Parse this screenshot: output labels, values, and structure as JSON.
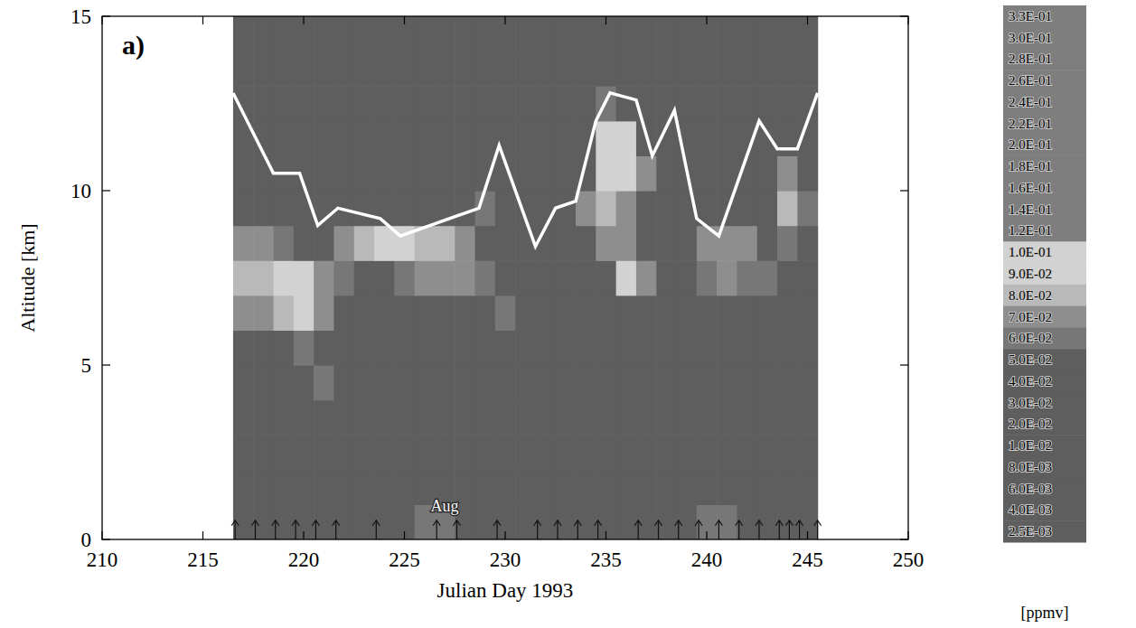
{
  "chart_data": {
    "type": "contour",
    "panel_label": "a)",
    "xlabel": "Julian Day 1993",
    "ylabel": "Altitude [km]",
    "xlim": [
      210,
      250
    ],
    "xticks": [
      210,
      215,
      220,
      225,
      230,
      235,
      240,
      245,
      250
    ],
    "ylim": [
      0,
      15
    ],
    "yticks": [
      0,
      5,
      10,
      15
    ],
    "grid": false,
    "annotations": [
      {
        "text": "Aug",
        "x": 227,
        "y": 0.8
      }
    ],
    "x": [
      217,
      218,
      219,
      220,
      221,
      222,
      223,
      224,
      225,
      226,
      227,
      228,
      229,
      230,
      231,
      232,
      233,
      234,
      235,
      236,
      237,
      238,
      239,
      240,
      241,
      242,
      243,
      244,
      245
    ],
    "y": [
      0.5,
      1.5,
      2.5,
      3.5,
      4.5,
      5.5,
      6.5,
      7.5,
      8.5,
      9.5,
      10.5,
      11.5,
      12.5,
      13.5,
      14.5
    ],
    "cells": [
      [
        0.04,
        0.04,
        0.04,
        0.04,
        0.04,
        0.04,
        0.04,
        0.04,
        0.04,
        0.06,
        0.06,
        0.04,
        0.04,
        0.04,
        0.04,
        0.04,
        0.04,
        0.04,
        0.04,
        0.04,
        0.04,
        0.04,
        0.04,
        0.06,
        0.06,
        0.04,
        0.04,
        0.04,
        0.04
      ],
      [
        0.04,
        0.04,
        0.04,
        0.04,
        0.04,
        0.04,
        0.04,
        0.04,
        0.04,
        0.04,
        0.04,
        0.04,
        0.04,
        0.04,
        0.04,
        0.04,
        0.04,
        0.04,
        0.04,
        0.04,
        0.04,
        0.04,
        0.04,
        0.04,
        0.05,
        0.04,
        0.04,
        0.04,
        0.04
      ],
      [
        0.05,
        0.05,
        0.05,
        0.05,
        0.05,
        0.05,
        0.05,
        0.05,
        0.05,
        0.05,
        0.05,
        0.05,
        0.05,
        0.05,
        0.05,
        0.05,
        0.05,
        0.05,
        0.05,
        0.05,
        0.05,
        0.05,
        0.05,
        0.05,
        0.05,
        0.05,
        0.05,
        0.05,
        0.05
      ],
      [
        0.05,
        0.05,
        0.05,
        0.05,
        0.05,
        0.05,
        0.05,
        0.05,
        0.05,
        0.05,
        0.05,
        0.05,
        0.05,
        0.05,
        0.05,
        0.05,
        0.05,
        0.05,
        0.05,
        0.05,
        0.05,
        0.05,
        0.05,
        0.05,
        0.05,
        0.05,
        0.05,
        0.05,
        0.05
      ],
      [
        0.05,
        0.05,
        0.05,
        0.05,
        0.06,
        0.05,
        0.05,
        0.05,
        0.05,
        0.05,
        0.05,
        0.05,
        0.05,
        0.05,
        0.05,
        0.05,
        0.05,
        0.05,
        0.05,
        0.05,
        0.05,
        0.05,
        0.05,
        0.05,
        0.05,
        0.05,
        0.05,
        0.05,
        0.05
      ],
      [
        0.05,
        0.05,
        0.05,
        0.06,
        0.05,
        0.05,
        0.05,
        0.05,
        0.05,
        0.05,
        0.05,
        0.05,
        0.05,
        0.05,
        0.05,
        0.05,
        0.05,
        0.05,
        0.05,
        0.05,
        0.05,
        0.05,
        0.05,
        0.05,
        0.05,
        0.05,
        0.05,
        0.05,
        0.05
      ],
      [
        0.07,
        0.07,
        0.08,
        0.09,
        0.07,
        0.05,
        0.05,
        0.05,
        0.05,
        0.05,
        0.05,
        0.05,
        0.05,
        0.06,
        0.05,
        0.05,
        0.05,
        0.05,
        0.05,
        0.05,
        0.05,
        0.05,
        0.05,
        0.05,
        0.05,
        0.05,
        0.05,
        0.05,
        0.05
      ],
      [
        0.08,
        0.08,
        0.085,
        0.09,
        0.07,
        0.06,
        0.05,
        0.05,
        0.06,
        0.07,
        0.07,
        0.07,
        0.06,
        0.05,
        0.05,
        0.05,
        0.05,
        0.05,
        0.05,
        0.09,
        0.07,
        0.05,
        0.05,
        0.06,
        0.065,
        0.06,
        0.06,
        0.05,
        0.05
      ],
      [
        0.07,
        0.07,
        0.06,
        0.05,
        0.05,
        0.07,
        0.08,
        0.09,
        0.09,
        0.08,
        0.08,
        0.07,
        0.05,
        0.05,
        0.05,
        0.05,
        0.05,
        0.05,
        0.07,
        0.07,
        0.05,
        0.05,
        0.05,
        0.07,
        0.07,
        0.065,
        0.05,
        0.06,
        0.05
      ],
      [
        0.05,
        0.05,
        0.05,
        0.05,
        0.05,
        0.05,
        0.05,
        0.05,
        0.05,
        0.05,
        0.05,
        0.05,
        0.06,
        0.05,
        0.05,
        0.05,
        0.05,
        0.07,
        0.08,
        0.07,
        0.05,
        0.05,
        0.05,
        0.05,
        0.05,
        0.05,
        0.05,
        0.075,
        0.06
      ],
      [
        0.05,
        0.05,
        0.05,
        0.05,
        0.05,
        0.05,
        0.05,
        0.05,
        0.05,
        0.05,
        0.05,
        0.05,
        0.05,
        0.05,
        0.05,
        0.05,
        0.05,
        0.05,
        0.085,
        0.09,
        0.07,
        0.05,
        0.05,
        0.05,
        0.05,
        0.05,
        0.05,
        0.07,
        0.05
      ],
      [
        0.05,
        0.05,
        0.05,
        0.05,
        0.05,
        0.05,
        0.05,
        0.05,
        0.05,
        0.05,
        0.05,
        0.05,
        0.05,
        0.05,
        0.05,
        0.05,
        0.05,
        0.05,
        0.09,
        0.085,
        0.05,
        0.05,
        0.05,
        0.05,
        0.05,
        0.05,
        0.05,
        0.05,
        0.05
      ],
      [
        0.05,
        0.05,
        0.05,
        0.05,
        0.05,
        0.05,
        0.05,
        0.05,
        0.05,
        0.05,
        0.05,
        0.05,
        0.05,
        0.05,
        0.05,
        0.05,
        0.05,
        0.05,
        0.06,
        0.05,
        0.05,
        0.05,
        0.05,
        0.05,
        0.05,
        0.05,
        0.05,
        0.05,
        0.05
      ],
      [
        0.05,
        0.05,
        0.05,
        0.05,
        0.05,
        0.05,
        0.05,
        0.05,
        0.05,
        0.05,
        0.05,
        0.05,
        0.05,
        0.05,
        0.05,
        0.05,
        0.05,
        0.05,
        0.05,
        0.05,
        0.05,
        0.05,
        0.05,
        0.05,
        0.05,
        0.05,
        0.05,
        0.05,
        0.05
      ],
      [
        0.05,
        0.05,
        0.05,
        0.05,
        0.05,
        0.05,
        0.05,
        0.05,
        0.05,
        0.05,
        0.05,
        0.05,
        0.05,
        0.05,
        0.05,
        0.05,
        0.05,
        0.05,
        0.05,
        0.05,
        0.05,
        0.05,
        0.05,
        0.05,
        0.05,
        0.05,
        0.05,
        0.05,
        0.05
      ]
    ],
    "tropopause": {
      "x": [
        216.5,
        218.5,
        219.8,
        220.7,
        221.7,
        223.8,
        224.8,
        228.7,
        229.7,
        231.5,
        232.5,
        233.5,
        234.5,
        235.2,
        236.5,
        237.3,
        238.4,
        239.5,
        240.6,
        242.6,
        243.5,
        244.5,
        245.5
      ],
      "y": [
        12.8,
        10.5,
        10.5,
        9.0,
        9.5,
        9.2,
        8.7,
        9.5,
        11.3,
        8.4,
        9.5,
        9.7,
        12.0,
        12.8,
        12.6,
        11.0,
        12.3,
        9.2,
        8.7,
        12.0,
        11.2,
        11.2,
        12.8
      ],
      "color": "#ffffff"
    },
    "soundings": {
      "x": [
        216.6,
        217.6,
        218.6,
        219.6,
        220.6,
        221.6,
        223.6,
        226.6,
        227.6,
        229.6,
        231.6,
        232.6,
        233.6,
        234.6,
        236.6,
        237.6,
        238.6,
        239.6,
        240.6,
        241.6,
        242.6,
        243.6,
        244.1,
        244.6,
        245.5
      ]
    },
    "colorbar": {
      "label": "[ppmv]",
      "ticks": [
        {
          "value": 0.33,
          "label": "3.3E-01"
        },
        {
          "value": 0.3,
          "label": "3.0E-01"
        },
        {
          "value": 0.28,
          "label": "2.8E-01"
        },
        {
          "value": 0.26,
          "label": "2.6E-01"
        },
        {
          "value": 0.24,
          "label": "2.4E-01"
        },
        {
          "value": 0.22,
          "label": "2.2E-01"
        },
        {
          "value": 0.2,
          "label": "2.0E-01"
        },
        {
          "value": 0.18,
          "label": "1.8E-01"
        },
        {
          "value": 0.16,
          "label": "1.6E-01"
        },
        {
          "value": 0.14,
          "label": "1.4E-01"
        },
        {
          "value": 0.12,
          "label": "1.2E-01"
        },
        {
          "value": 0.1,
          "label": "1.0E-01"
        },
        {
          "value": 0.09,
          "label": "9.0E-02"
        },
        {
          "value": 0.08,
          "label": "8.0E-02"
        },
        {
          "value": 0.07,
          "label": "7.0E-02"
        },
        {
          "value": 0.06,
          "label": "6.0E-02"
        },
        {
          "value": 0.05,
          "label": "5.0E-02"
        },
        {
          "value": 0.04,
          "label": "4.0E-02"
        },
        {
          "value": 0.03,
          "label": "3.0E-02"
        },
        {
          "value": 0.02,
          "label": "2.0E-02"
        },
        {
          "value": 0.01,
          "label": "1.0E-02"
        },
        {
          "value": 0.008,
          "label": "8.0E-03"
        },
        {
          "value": 0.006,
          "label": "6.0E-03"
        },
        {
          "value": 0.004,
          "label": "4.0E-03"
        },
        {
          "value": 0.0025,
          "label": "2.5E-03"
        }
      ]
    }
  }
}
